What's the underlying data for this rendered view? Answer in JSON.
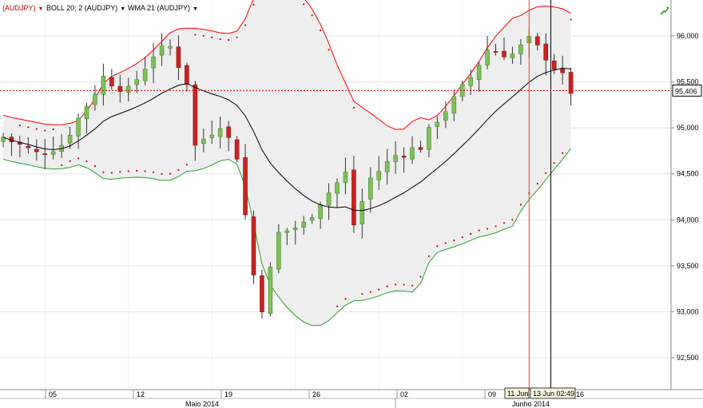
{
  "header": {
    "symbol": "(AUDJPY)",
    "boll": "BOLL 20; 2 (AUDJPY)",
    "wma": "WMA 21 (AUDJPY)"
  },
  "chart_data": {
    "type": "candlestick",
    "instrument": "AUDJPY",
    "ylim": [
      92.1,
      96.45
    ],
    "y_ticks": [
      "96,000",
      "95,500",
      "95,000",
      "94,500",
      "94,000",
      "93,500",
      "93,000",
      "92,500"
    ],
    "y_tick_values": [
      96.0,
      95.5,
      95.0,
      94.5,
      94.0,
      93.5,
      93.0,
      92.5
    ],
    "x_day_labels": [
      "05",
      "12",
      "19",
      "26",
      "02",
      "09",
      "16"
    ],
    "x_months": [
      "Maio 2014",
      "Junho 2014"
    ],
    "price_label": "95,406",
    "price_value": 95.406,
    "crosshair_labels": [
      "11 Jun",
      "13 Jun 02:49"
    ],
    "grid": true,
    "colors": {
      "up": "#7fbf5a",
      "down": "#cc2222",
      "upper_band": "#ff0000",
      "lower_band": "#2ca02c",
      "wma": "#000000",
      "sar": "#cc0000",
      "price_line": "#e00000"
    },
    "indicators": [
      "BOLL 20; 2",
      "WMA 21",
      "Parabolic SAR"
    ]
  }
}
